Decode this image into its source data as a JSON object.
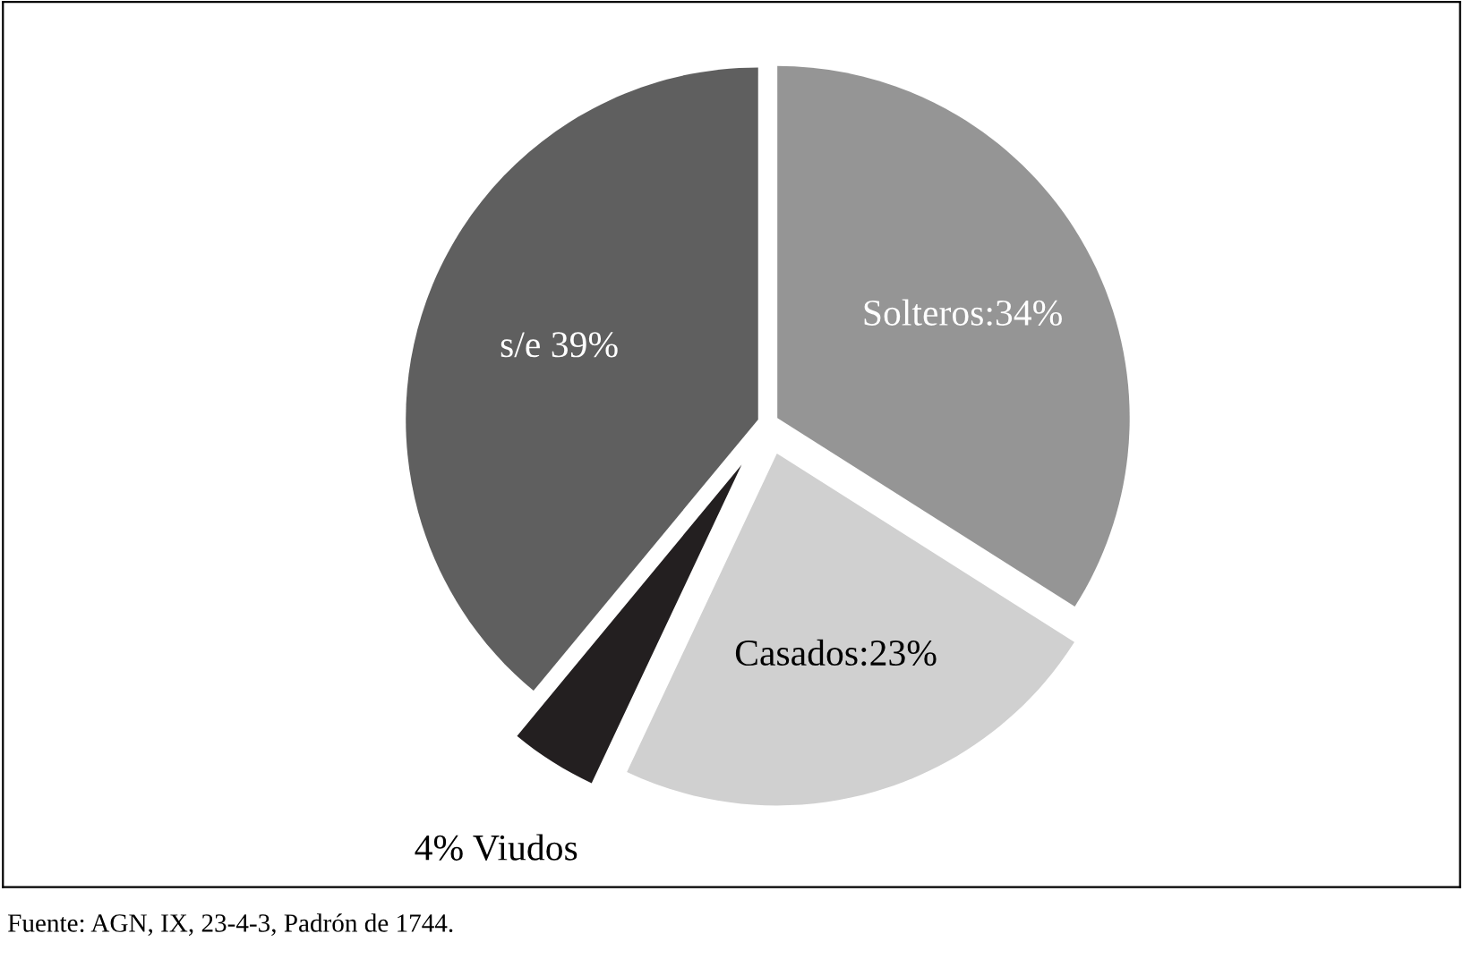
{
  "chart_data": {
    "type": "pie",
    "categories": [
      "Solteros:34%",
      "Casados:23%",
      "4% Viudos",
      "s/e 39%"
    ],
    "values": [
      34,
      23,
      4,
      39
    ],
    "colors": [
      "#959595",
      "#d0d0d0",
      "#231f20",
      "#5f5f5f"
    ],
    "annotations": [
      "Fuente: AGN, IX, 23-4-3, Padrón de 1744."
    ]
  }
}
